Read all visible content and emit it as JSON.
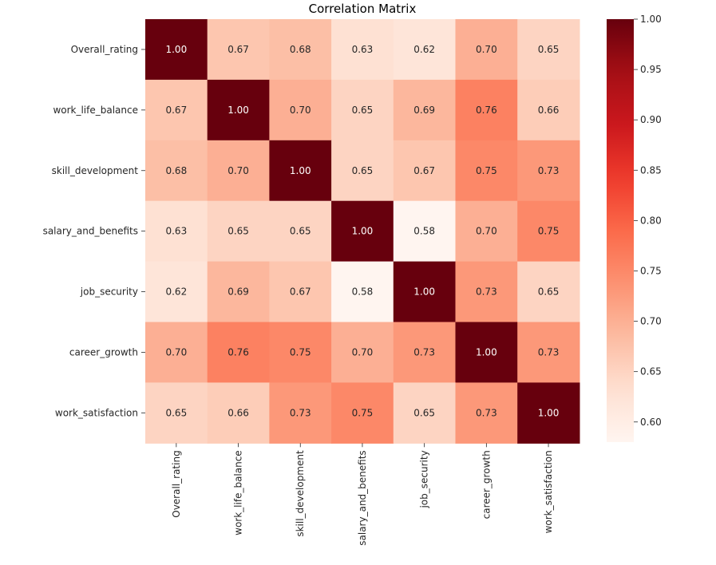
{
  "chart_data": {
    "type": "heatmap",
    "title": "Correlation Matrix",
    "row_labels": [
      "Overall_rating",
      "work_life_balance",
      "skill_development",
      "salary_and_benefits",
      "job_security",
      "career_growth",
      "work_satisfaction"
    ],
    "col_labels": [
      "Overall_rating",
      "work_life_balance",
      "skill_development",
      "salary_and_benefits",
      "job_security",
      "career_growth",
      "work_satisfaction"
    ],
    "values": [
      [
        1.0,
        0.67,
        0.68,
        0.63,
        0.62,
        0.7,
        0.65
      ],
      [
        0.67,
        1.0,
        0.7,
        0.65,
        0.69,
        0.76,
        0.66
      ],
      [
        0.68,
        0.7,
        1.0,
        0.65,
        0.67,
        0.75,
        0.73
      ],
      [
        0.63,
        0.65,
        0.65,
        1.0,
        0.58,
        0.7,
        0.75
      ],
      [
        0.62,
        0.69,
        0.67,
        0.58,
        1.0,
        0.73,
        0.65
      ],
      [
        0.7,
        0.76,
        0.75,
        0.7,
        0.73,
        1.0,
        0.73
      ],
      [
        0.65,
        0.66,
        0.73,
        0.75,
        0.65,
        0.73,
        1.0
      ]
    ],
    "annotation_format": "2 decimals",
    "colormap": "Reds",
    "colormap_stops": [
      "#fff5f0",
      "#fee0d2",
      "#fcbba1",
      "#fc9272",
      "#fb6a4a",
      "#ef3b2c",
      "#cb181d",
      "#a50f15",
      "#67000d"
    ],
    "vmin": 0.58,
    "vmax": 1.0,
    "colorbar_ticks": [
      0.6,
      0.65,
      0.7,
      0.75,
      0.8,
      0.85,
      0.9,
      0.95,
      1.0
    ],
    "colorbar_tick_labels": [
      "0.60",
      "0.65",
      "0.70",
      "0.75",
      "0.80",
      "0.85",
      "0.90",
      "0.95",
      "1.00"
    ],
    "legend_position": "right"
  }
}
